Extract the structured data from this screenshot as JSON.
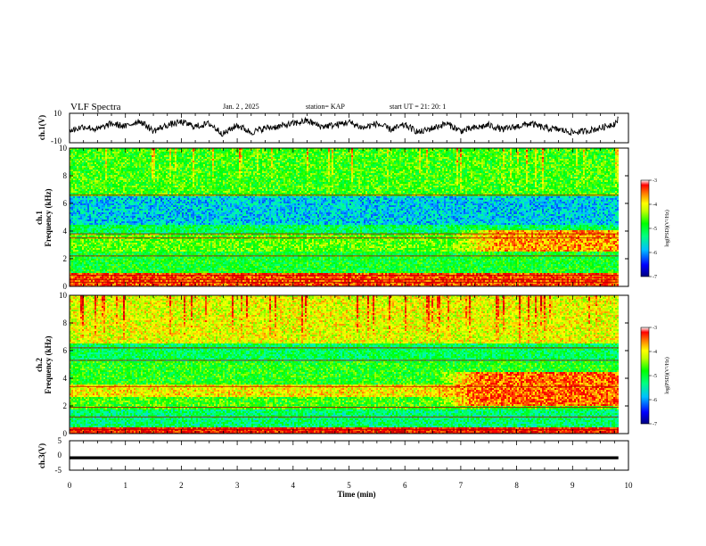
{
  "header": {
    "title": "VLF Spectra",
    "date": "Jan. 2 , 2025",
    "station": "station= KAP",
    "start": "start  UT =   21: 20: 1"
  },
  "colors": {
    "spectrogram_scale": [
      "#000080",
      "#0000ff",
      "#00a0ff",
      "#00ffff",
      "#00ff80",
      "#00ff00",
      "#a0ff00",
      "#ffff00",
      "#ff8000",
      "#ff0000",
      "#c00000"
    ],
    "trace": "#000000",
    "frame": "#000000"
  },
  "chart_data": [
    {
      "panel": "ch1_voltage",
      "type": "line",
      "ylabel": "ch.1(V)",
      "ylim": [
        -10,
        10
      ],
      "yticks": [
        "10",
        "-10"
      ],
      "xlim": [
        0,
        10
      ],
      "x": [
        0,
        0.25,
        0.5,
        0.75,
        1.0,
        1.25,
        1.5,
        1.75,
        2.0,
        2.25,
        2.5,
        2.75,
        3.0,
        3.25,
        3.5,
        3.75,
        4.0,
        4.25,
        4.5,
        4.75,
        5.0,
        5.25,
        5.5,
        5.75,
        6.0,
        6.25,
        6.5,
        6.75,
        7.0,
        7.25,
        7.5,
        7.75,
        8.0,
        8.25,
        8.5,
        8.75,
        9.0,
        9.25,
        9.5,
        9.75,
        9.82
      ],
      "values": [
        -2,
        1,
        -1,
        3,
        1,
        5,
        -2,
        2,
        4,
        1,
        3,
        -4,
        2,
        -3,
        0,
        1,
        3,
        5,
        1,
        2,
        4,
        0,
        3,
        -1,
        2,
        -3,
        0,
        3,
        -2,
        0,
        2,
        -1,
        1,
        3,
        0,
        -1,
        -3,
        -2,
        0,
        3,
        6
      ]
    },
    {
      "panel": "ch1_spectrogram",
      "type": "heatmap",
      "ylabel": "ch.1",
      "ylabel2": "Frequency (kHz)",
      "ylim": [
        0,
        10
      ],
      "yticks": [
        "0",
        "2",
        "4",
        "6",
        "8",
        "10"
      ],
      "xlim": [
        0,
        10
      ],
      "data_end_min": 9.82,
      "colorbar": {
        "label": "log(PSD)(V²/Hz)",
        "range": [
          -7,
          -3
        ],
        "ticks": [
          "-3",
          "-4",
          "-5",
          "-6",
          "-7"
        ]
      },
      "bands": [
        {
          "from_khz": 0.0,
          "to_khz": 1.0,
          "level": -3.6
        },
        {
          "from_khz": 1.0,
          "to_khz": 2.5,
          "level": -5.1
        },
        {
          "from_khz": 2.5,
          "to_khz": 3.8,
          "level": -4.8
        },
        {
          "from_khz": 3.8,
          "to_khz": 4.5,
          "level": -5.3
        },
        {
          "from_khz": 4.5,
          "to_khz": 6.5,
          "level": -5.9
        },
        {
          "from_khz": 6.5,
          "to_khz": 10.0,
          "level": -4.9
        }
      ],
      "enhancement": {
        "from_min": 6.8,
        "to_min": 9.82,
        "from_khz": 2.5,
        "to_khz": 4.0,
        "level": -3.9
      },
      "lines_khz": [
        0.3,
        0.5,
        0.8,
        2.2,
        3.5,
        3.8,
        6.6
      ]
    },
    {
      "panel": "ch2_spectrogram",
      "type": "heatmap",
      "ylabel": "ch.2",
      "ylabel2": "Frequency (kHz)",
      "ylim": [
        0,
        10
      ],
      "yticks": [
        "0",
        "2",
        "4",
        "6",
        "8",
        "10"
      ],
      "xlim": [
        0,
        10
      ],
      "data_end_min": 9.82,
      "colorbar": {
        "label": "log(PSD)(V²/Hz)",
        "range": [
          -7,
          -3
        ],
        "ticks": [
          "-3",
          "-4",
          "-5",
          "-6",
          "-7"
        ]
      },
      "bands": [
        {
          "from_khz": 0.0,
          "to_khz": 0.5,
          "level": -3.4
        },
        {
          "from_khz": 0.5,
          "to_khz": 1.8,
          "level": -5.4
        },
        {
          "from_khz": 1.8,
          "to_khz": 2.6,
          "level": -4.9
        },
        {
          "from_khz": 2.6,
          "to_khz": 3.6,
          "level": -4.2
        },
        {
          "from_khz": 3.6,
          "to_khz": 5.2,
          "level": -5.0
        },
        {
          "from_khz": 5.2,
          "to_khz": 6.5,
          "level": -5.3
        },
        {
          "from_khz": 6.5,
          "to_khz": 10.0,
          "level": -4.3
        }
      ],
      "enhancement": {
        "from_min": 6.5,
        "to_min": 9.82,
        "from_khz": 2.0,
        "to_khz": 4.5,
        "level": -3.7
      },
      "lines_khz": [
        0.3,
        1.2,
        1.9,
        3.4,
        5.3,
        6.2
      ]
    },
    {
      "panel": "ch3_voltage",
      "type": "line",
      "ylabel": "ch.3(V)",
      "ylim": [
        -5,
        5
      ],
      "yticks": [
        "5",
        "0",
        "-5"
      ],
      "xlim": [
        0,
        10
      ],
      "x": [
        0,
        9.82
      ],
      "values": [
        -0.8,
        -0.8
      ],
      "band_halfwidth_v": 0.5
    }
  ],
  "xaxis": {
    "label": "Time (min)",
    "ticks": [
      "0",
      "1",
      "2",
      "3",
      "4",
      "5",
      "6",
      "7",
      "8",
      "9",
      "10"
    ]
  }
}
